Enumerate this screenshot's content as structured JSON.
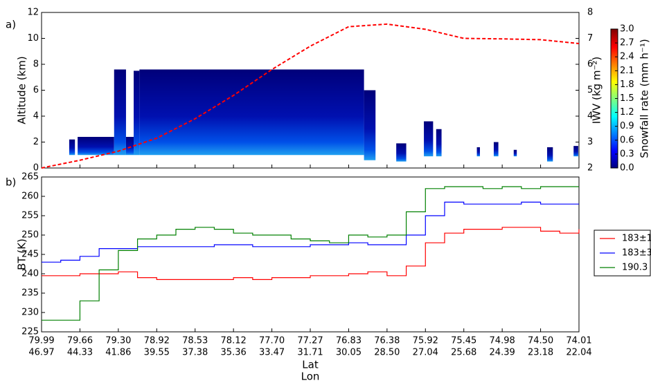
{
  "chart_data": [
    {
      "type": "line",
      "panel_label": "a)",
      "ylabel": "Altitude (km)",
      "y2label": "IWV (kg m⁻²)",
      "ylim": [
        0,
        12
      ],
      "yticks": [
        0,
        2,
        4,
        6,
        8,
        10,
        12
      ],
      "y2lim": [
        2,
        8
      ],
      "y2ticks": [
        2,
        3,
        4,
        5,
        6,
        7,
        8
      ],
      "xlim": [
        0,
        14
      ],
      "echo_blocks": [
        [
          0.72,
          0.87,
          1.0,
          2.2
        ],
        [
          0.94,
          1.89,
          1.0,
          2.4
        ],
        [
          1.89,
          2.2,
          1.0,
          7.6
        ],
        [
          2.2,
          2.4,
          1.0,
          2.4
        ],
        [
          2.4,
          2.55,
          1.0,
          7.5
        ],
        [
          2.55,
          8.4,
          1.0,
          7.6
        ],
        [
          8.4,
          8.7,
          0.6,
          6.0
        ],
        [
          9.24,
          9.5,
          0.5,
          1.9
        ],
        [
          9.96,
          10.2,
          0.9,
          3.6
        ],
        [
          10.28,
          10.42,
          0.9,
          3.0
        ],
        [
          11.34,
          11.42,
          0.9,
          1.6
        ],
        [
          11.78,
          11.9,
          0.9,
          2.0
        ],
        [
          12.3,
          12.38,
          0.9,
          1.4
        ],
        [
          13.17,
          13.32,
          0.5,
          1.6
        ],
        [
          13.86,
          13.98,
          0.9,
          1.7
        ]
      ],
      "colorbar": {
        "label": "Snowfall rate (mm h⁻¹)",
        "clim": [
          0,
          3
        ],
        "ticks": [
          {
            "value": 0,
            "label": "0.0"
          },
          {
            "value": 0.3,
            "label": "0.3"
          },
          {
            "value": 0.6,
            "label": "0.6"
          },
          {
            "value": 0.9,
            "label": "0.9"
          },
          {
            "value": 1.2,
            "label": "1.2"
          },
          {
            "value": 1.5,
            "label": "1.5"
          },
          {
            "value": 1.8,
            "label": "1.8"
          },
          {
            "value": 2.1,
            "label": "2.1"
          },
          {
            "value": 2.4,
            "label": "2.4"
          },
          {
            "value": 2.7,
            "label": "2.7"
          },
          {
            "value": 3,
            "label": "3.0"
          }
        ]
      },
      "series": [
        {
          "name": "IWV",
          "color": "#ff0000",
          "axis": "y2",
          "dashed": true,
          "x": [
            0,
            1,
            2,
            3,
            4,
            5,
            6,
            7,
            8,
            9,
            10,
            11,
            12,
            13,
            14
          ],
          "values": [
            2.0,
            2.3,
            2.65,
            3.15,
            3.9,
            4.8,
            5.8,
            6.7,
            7.45,
            7.55,
            7.35,
            7.0,
            6.98,
            6.95,
            6.8
          ]
        }
      ]
    },
    {
      "type": "line",
      "step": true,
      "panel_label": "b)",
      "ylabel": "BT (K)",
      "xlabel": "Lat",
      "xlabel2": "Lon",
      "ylim": [
        225,
        265
      ],
      "yticks": [
        225,
        230,
        235,
        240,
        245,
        250,
        255,
        260,
        265
      ],
      "xlim": [
        0,
        14
      ],
      "lat_labels": [
        "79.99",
        "79.66",
        "79.30",
        "78.92",
        "78.53",
        "78.12",
        "77.70",
        "77.27",
        "76.83",
        "76.38",
        "75.92",
        "75.45",
        "74.98",
        "74.50",
        "74.01"
      ],
      "lon_labels": [
        "46.97",
        "44.33",
        "41.86",
        "39.55",
        "37.38",
        "35.36",
        "33.47",
        "31.71",
        "30.05",
        "28.50",
        "27.04",
        "25.68",
        "24.39",
        "23.18",
        "22.04"
      ],
      "x": [
        0,
        0.5,
        1,
        1.5,
        2,
        2.5,
        3,
        3.5,
        4,
        4.5,
        5,
        5.5,
        6,
        6.5,
        7,
        7.5,
        8,
        8.5,
        9,
        9.5,
        10,
        10.5,
        11,
        11.5,
        12,
        12.5,
        13,
        13.5,
        14
      ],
      "series": [
        {
          "name": "183±1",
          "color": "#ff0000",
          "values": [
            239.5,
            239.5,
            240,
            240,
            240.5,
            239,
            238.5,
            238.5,
            238.5,
            238.5,
            239,
            238.5,
            239,
            239,
            239.5,
            239.5,
            240,
            240.5,
            239.5,
            242,
            248,
            250.5,
            251.5,
            251.5,
            252,
            252,
            251,
            250.5,
            251.5
          ]
        },
        {
          "name": "183±3",
          "color": "#0000ff",
          "values": [
            243,
            243.5,
            244.5,
            246.5,
            246.5,
            247,
            247,
            247,
            247,
            247.5,
            247.5,
            247,
            247,
            247,
            247.5,
            247.5,
            248,
            247.5,
            247.5,
            250,
            255,
            258.5,
            258,
            258,
            258,
            258.5,
            258,
            258,
            258
          ]
        },
        {
          "name": "190.3",
          "color": "#008000",
          "values": [
            228,
            228,
            233,
            241,
            246,
            249,
            250,
            251.5,
            252,
            251.5,
            250.5,
            250,
            250,
            249,
            248.5,
            248,
            250,
            249.5,
            250,
            256,
            262,
            262.5,
            262.5,
            262,
            262.5,
            262,
            262.5,
            262.5,
            262.5
          ]
        }
      ]
    }
  ]
}
